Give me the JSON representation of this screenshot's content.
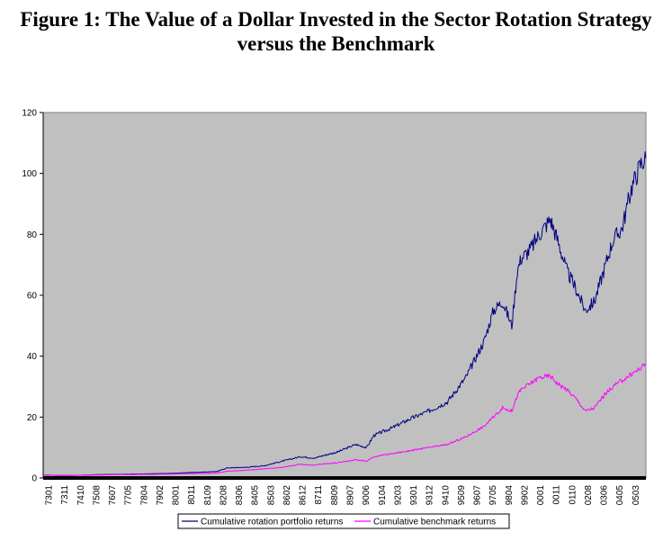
{
  "chart_data": {
    "type": "line",
    "title": "Figure 1: The Value of a Dollar Invested in the Sector Rotation Strategy versus the Benchmark",
    "title_lines": [
      "Figure 1: The Value of a Dollar Invested in the Sector Rotation Strategy",
      "versus the Benchmark"
    ],
    "xlabel": "",
    "ylabel": "",
    "ylim": [
      0,
      120
    ],
    "yticks": [
      0,
      20,
      40,
      60,
      80,
      100,
      120
    ],
    "grid": false,
    "legend_position": "bottom",
    "background": "#c0c0c0",
    "x_tick_labels": [
      "7301",
      "7311",
      "7410",
      "7508",
      "7607",
      "7705",
      "7804",
      "7902",
      "8001",
      "8011",
      "8109",
      "8208",
      "8306",
      "8405",
      "8503",
      "8602",
      "8612",
      "8711",
      "8809",
      "8907",
      "9006",
      "9104",
      "9203",
      "9301",
      "9312",
      "9410",
      "9509",
      "9607",
      "9705",
      "9804",
      "9902",
      "0001",
      "0011",
      "0110",
      "0208",
      "0306",
      "0405",
      "0503"
    ],
    "x": [
      1973.0,
      1974.0,
      1975.0,
      1976.0,
      1977.0,
      1978.0,
      1979.0,
      1980.0,
      1981.0,
      1982.0,
      1982.5,
      1983.0,
      1984.0,
      1985.0,
      1986.0,
      1987.0,
      1987.8,
      1988.0,
      1989.0,
      1990.0,
      1990.6,
      1991.0,
      1992.0,
      1993.0,
      1994.0,
      1995.0,
      1996.0,
      1997.0,
      1997.5,
      1998.0,
      1998.5,
      1998.8,
      1999.0,
      1999.5,
      2000.0,
      2000.6,
      2001.0,
      2001.5,
      2002.0,
      2002.5,
      2003.0,
      2003.5,
      2004.0,
      2004.5,
      2005.0,
      2005.5,
      2005.8
    ],
    "series": [
      {
        "name": "Cumulative rotation portfolio returns",
        "color": "#000080",
        "values": [
          1.0,
          0.8,
          0.9,
          1.1,
          1.2,
          1.3,
          1.4,
          1.5,
          1.8,
          2.0,
          2.2,
          3.3,
          3.5,
          4.0,
          5.5,
          7.0,
          6.5,
          7.0,
          8.5,
          11.0,
          10.0,
          14.0,
          16.5,
          19.5,
          22.0,
          25.0,
          33.0,
          45.0,
          55.0,
          58.0,
          50.0,
          68.0,
          72.0,
          75.0,
          80.0,
          85.0,
          78.0,
          68.0,
          62.0,
          55.0,
          58.0,
          68.0,
          78.0,
          82.0,
          95.0,
          103.0,
          105.0
        ]
      },
      {
        "name": "Cumulative benchmark returns",
        "color": "#ff00ff",
        "values": [
          1.0,
          0.8,
          0.9,
          1.0,
          1.1,
          1.15,
          1.2,
          1.3,
          1.45,
          1.5,
          1.7,
          2.2,
          2.5,
          3.0,
          3.5,
          4.5,
          4.2,
          4.5,
          5.0,
          6.0,
          5.5,
          7.0,
          8.0,
          9.0,
          10.0,
          11.0,
          13.5,
          17.0,
          20.0,
          23.0,
          22.0,
          27.0,
          29.0,
          31.0,
          33.0,
          33.5,
          31.0,
          29.0,
          26.0,
          22.0,
          23.0,
          27.0,
          30.0,
          32.0,
          34.0,
          36.0,
          37.5
        ]
      }
    ]
  }
}
